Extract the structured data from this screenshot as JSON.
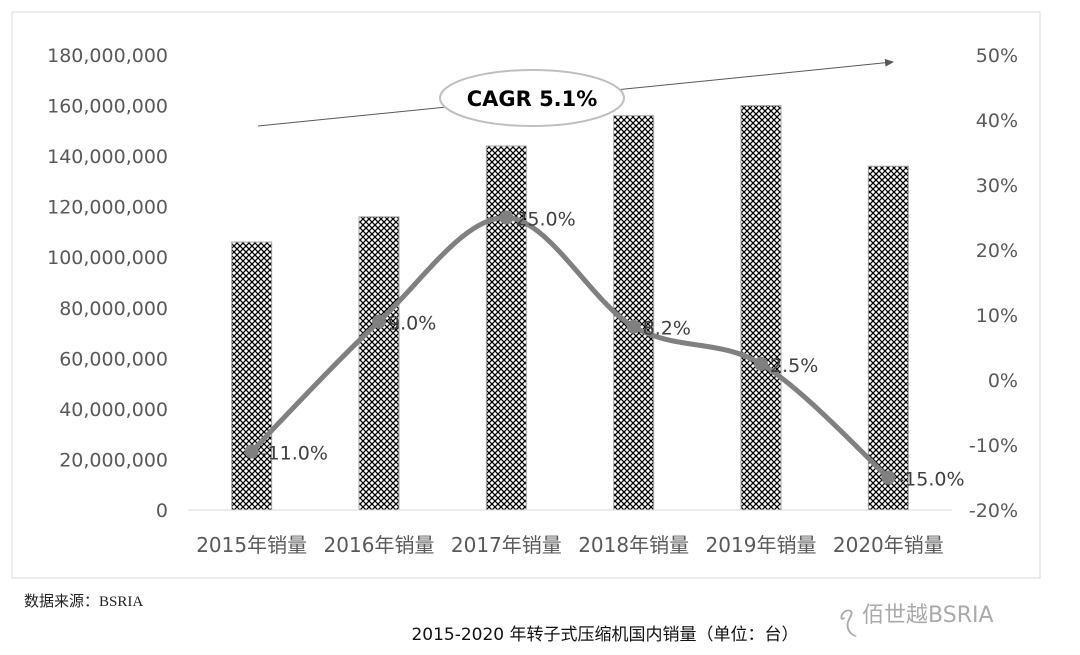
{
  "chart_data": {
    "type": "bar+line",
    "categories": [
      "2015年销量",
      "2016年销量",
      "2017年销量",
      "2018年销量",
      "2019年销量",
      "2020年销量"
    ],
    "bar_values": [
      106000000,
      116000000,
      144000000,
      156000000,
      160000000,
      136000000
    ],
    "line_values": [
      -11.0,
      9.0,
      25.0,
      8.2,
      2.5,
      -15.0
    ],
    "line_labels": [
      "-11.0%",
      "9.0%",
      "25.0%",
      "8.2%",
      "2.5%",
      "-15.0%"
    ],
    "y_left": {
      "min": 0,
      "max": 180000000,
      "step": 20000000,
      "ticks": [
        "0",
        "20,000,000",
        "40,000,000",
        "60,000,000",
        "80,000,000",
        "100,000,000",
        "120,000,000",
        "140,000,000",
        "160,000,000",
        "180,000,000"
      ]
    },
    "y_right": {
      "min": -20,
      "max": 50,
      "step": 10,
      "ticks": [
        "-20%",
        "-10%",
        "0%",
        "10%",
        "20%",
        "30%",
        "40%",
        "50%"
      ]
    },
    "annotation": "CAGR 5.1%",
    "grid": false,
    "colors": {
      "bar_pattern": "#000000",
      "line": "#808080",
      "axis_text": "#595959"
    }
  },
  "source": "数据来源：BSRIA",
  "caption": "2015-2020 年转子式压缩机国内销量（单位：台）",
  "watermark": "佰世越BSRIA"
}
